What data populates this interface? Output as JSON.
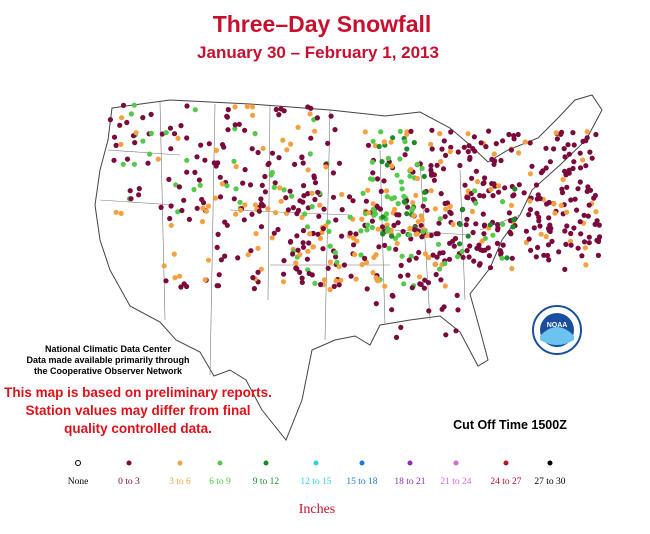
{
  "title": "Three–Day Snowfall",
  "subtitle": "January 30 – February 1, 2013",
  "credit": [
    "National Climatic Data Center",
    "Data made available primarily through",
    "the Cooperative Observer Network"
  ],
  "disclaimer": [
    "This map is based on preliminary reports.",
    "Station values may differ from final",
    "quality controlled data."
  ],
  "cutoff": "Cut Off Time 1500Z",
  "legend": {
    "items": [
      {
        "label": "None",
        "color": "#000000"
      },
      {
        "label": "0 to 3",
        "color": "#7a0a3c"
      },
      {
        "label": "3 to 6",
        "color": "#f5a142"
      },
      {
        "label": "6 to 9",
        "color": "#55c94a"
      },
      {
        "label": "9 to 12",
        "color": "#1f8a2a"
      },
      {
        "label": "12 to 15",
        "color": "#2ed3e8"
      },
      {
        "label": "15 to 18",
        "color": "#1e78e0"
      },
      {
        "label": "18 to 21",
        "color": "#8e2fb8"
      },
      {
        "label": "21 to 24",
        "color": "#d46ad4"
      },
      {
        "label": "24 to 27",
        "color": "#c0102a"
      },
      {
        "label": "27 to 30",
        "color": "#000000"
      }
    ],
    "units": "Inches"
  }
}
